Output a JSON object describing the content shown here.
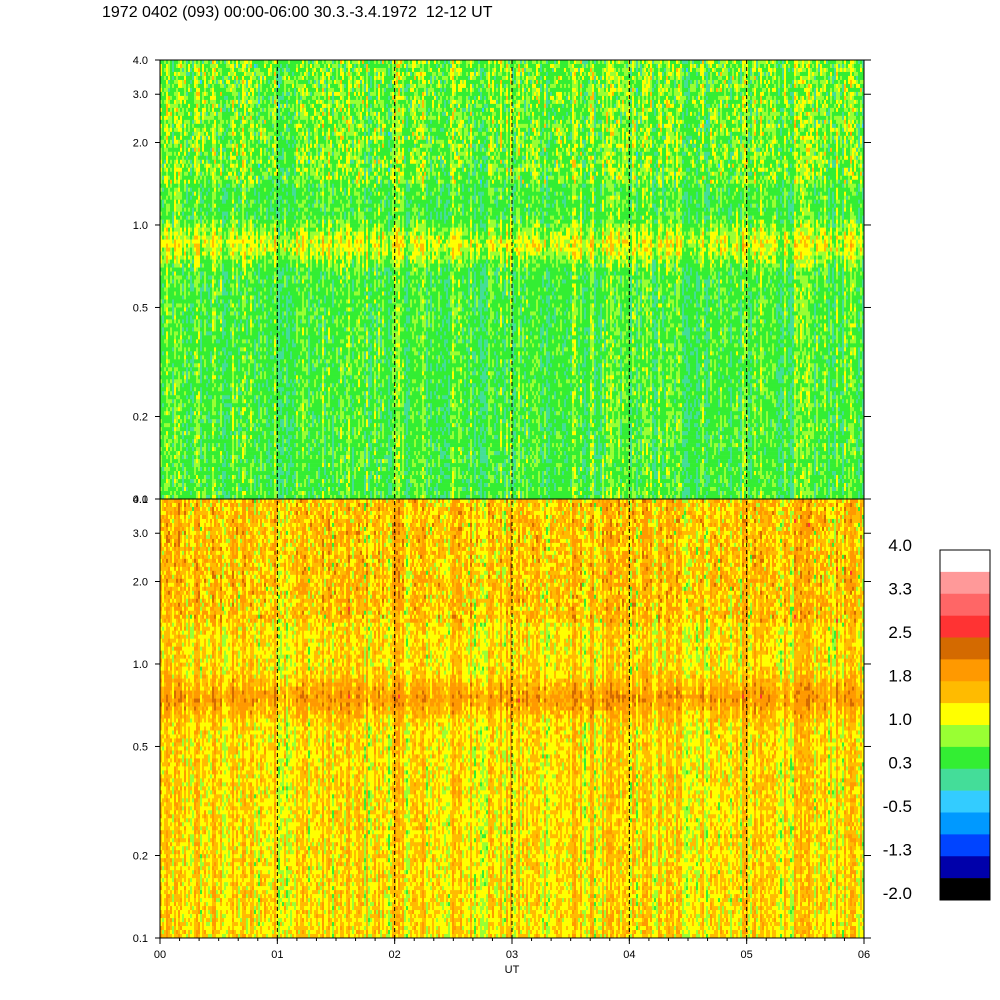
{
  "title": "1972 0402 (093) 00:00-06:00 30.3.-3.4.1972  12-12 UT",
  "chart_data": {
    "type": "heatmap",
    "title": "1972 0402 (093) 00:00-06:00 30.3.-3.4.1972  12-12 UT",
    "xlabel": "UT",
    "x_ticks": [
      "00",
      "01",
      "02",
      "03",
      "04",
      "05",
      "06"
    ],
    "xlim": [
      0,
      6
    ],
    "y_scale": "log",
    "ylim": [
      0.1,
      4.0
    ],
    "y_ticks": [
      0.1,
      0.2,
      0.5,
      1.0,
      2.0,
      3.0,
      4.0
    ],
    "y_tick_labels": [
      "0.1",
      "0.2",
      "0.5",
      "1.0",
      "2.0",
      "3.0",
      "4.0"
    ],
    "panels": [
      {
        "id": "upper",
        "base_level": 0.3,
        "band_level": 1.0,
        "band_center": 0.85
      },
      {
        "id": "lower",
        "base_level": 1.2,
        "band_level": 1.8,
        "band_center": 0.75
      }
    ],
    "vertical_dashed_lines_at": [
      1,
      2,
      3,
      4,
      5
    ],
    "colorbar": {
      "tick_labels": [
        "4.0",
        "3.3",
        "2.5",
        "1.8",
        "1.0",
        "0.3",
        "-0.5",
        "-1.3",
        "-2.0"
      ],
      "colors": [
        "#ffffff",
        "#ff9999",
        "#ff6666",
        "#ff3333",
        "#d46a00",
        "#ff9900",
        "#ffbb00",
        "#ffff00",
        "#99ff33",
        "#33ee33",
        "#44dd99",
        "#33ccff",
        "#0099ff",
        "#0044ff",
        "#0000aa",
        "#000000"
      ]
    }
  }
}
